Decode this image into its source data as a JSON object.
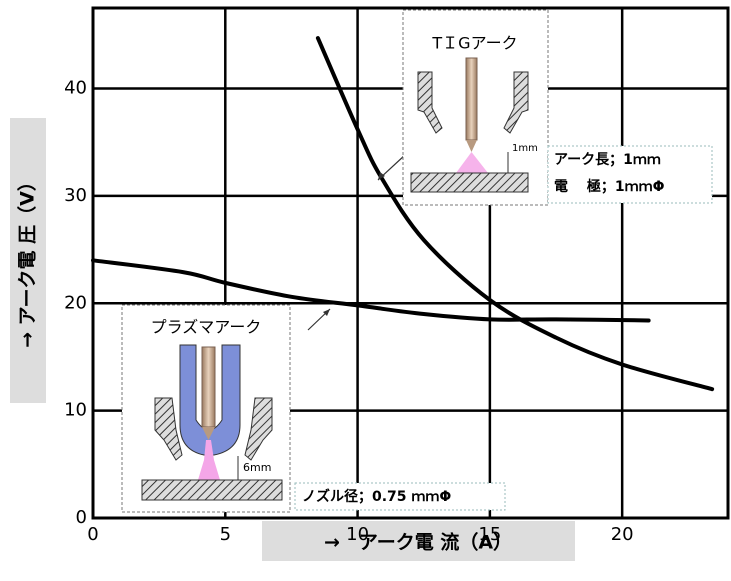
{
  "chart_data": {
    "type": "line",
    "x_label": "→　アーク電 流（A）",
    "y_label": "→ アーク電 圧（V）",
    "xlim": [
      0,
      24
    ],
    "ylim": [
      0,
      47.5
    ],
    "xticks": [
      0,
      5,
      10,
      15,
      20
    ],
    "yticks": [
      0,
      10,
      20,
      30,
      40
    ],
    "grid": true,
    "series": [
      {
        "color": "#000000",
        "x": [
          8.5,
          10,
          10.9,
          12.5,
          15,
          17.5,
          20,
          23.4
        ],
        "values": [
          44.7,
          36.2,
          31.7,
          25.9,
          20.3,
          16.8,
          14.3,
          12.0
        ]
      },
      {
        "color": "#000000",
        "x": [
          0,
          3.4,
          5,
          7.5,
          10,
          12.5,
          15,
          17.5,
          21
        ],
        "values": [
          24.0,
          22.9,
          21.9,
          20.6,
          19.8,
          19.0,
          18.5,
          18.5,
          18.4
        ]
      }
    ]
  },
  "annotations": {
    "tig": {
      "title": "TＩGアーク",
      "lines": [
        "アーク長；1ｍｍ",
        "電　 極；1ｍｍΦ"
      ],
      "gap_label": "1mm"
    },
    "plasma": {
      "title": "プラズマアーク",
      "lines": [
        "ノズル径；0.75 ｍｍΦ"
      ],
      "gap_label": "6mm"
    }
  }
}
